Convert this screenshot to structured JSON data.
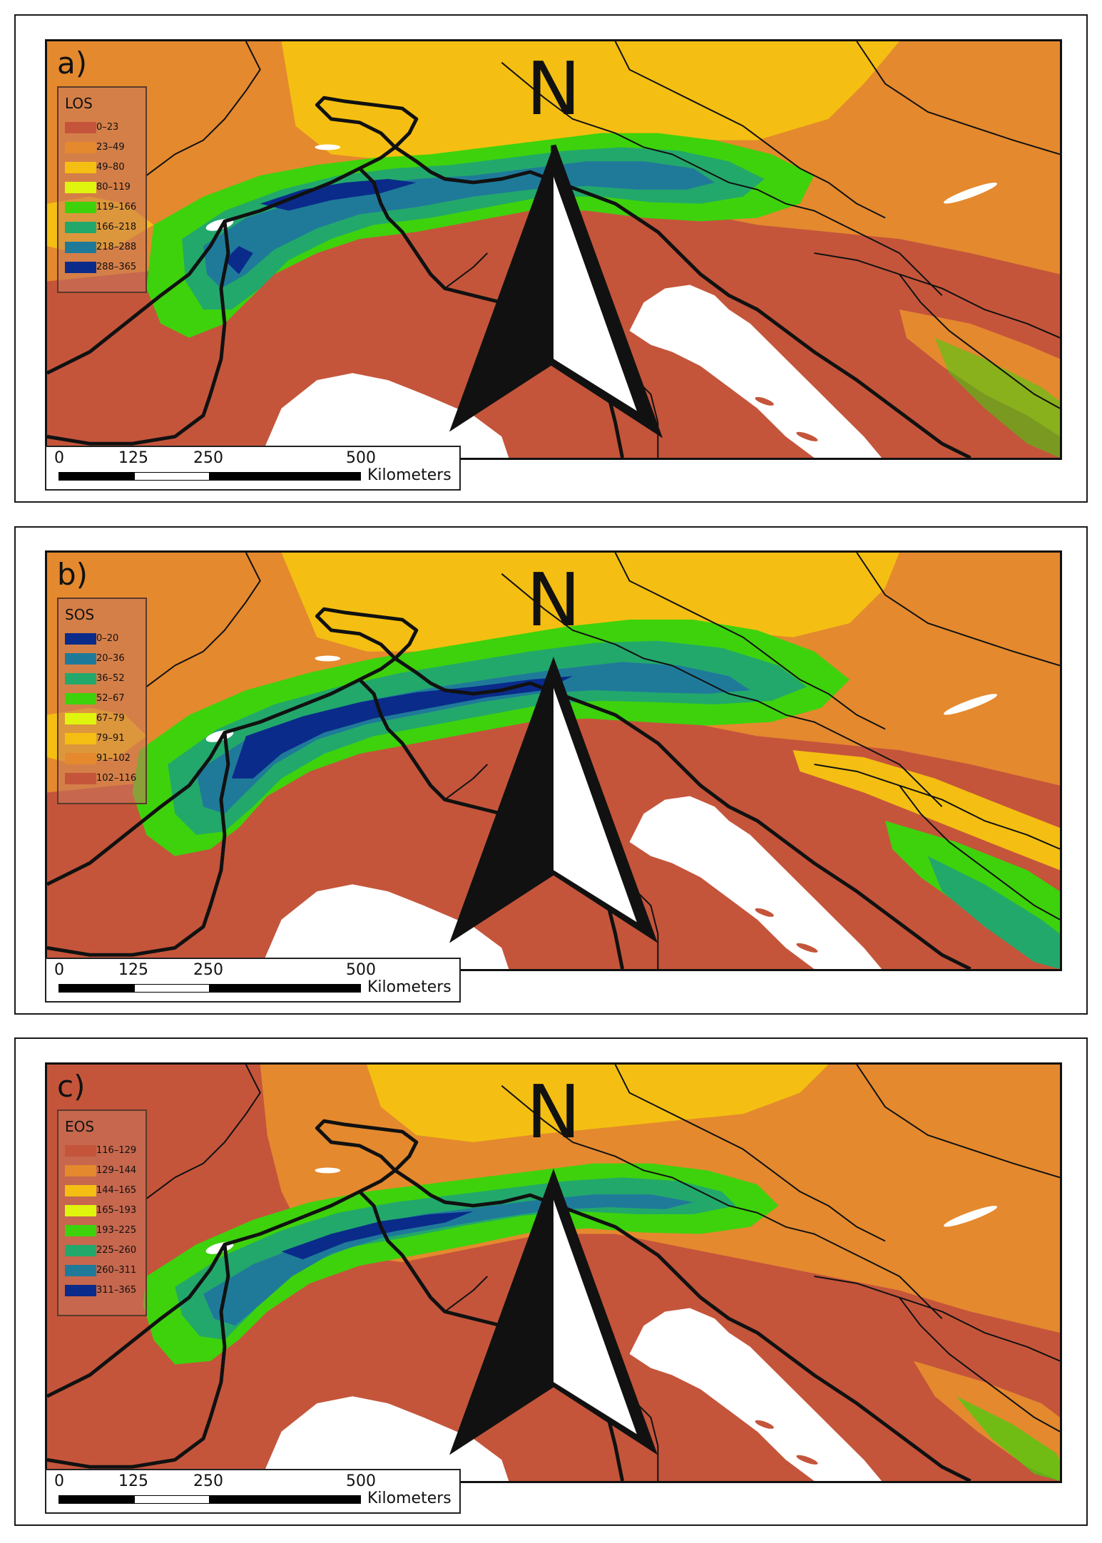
{
  "panels": [
    {
      "letter": "a)",
      "legend_title": "LOS",
      "legend": [
        {
          "label": "0–23",
          "color": "#c4553b"
        },
        {
          "label": "23–49",
          "color": "#e4892e"
        },
        {
          "label": "49–80",
          "color": "#f4bf12"
        },
        {
          "label": "80–119",
          "color": "#e0f50d"
        },
        {
          "label": "119–166",
          "color": "#3ed20c"
        },
        {
          "label": "166–218",
          "color": "#23a86b"
        },
        {
          "label": "218–288",
          "color": "#1f7a9a"
        },
        {
          "label": "288–365",
          "color": "#0a2b8a"
        }
      ]
    },
    {
      "letter": "b)",
      "legend_title": "SOS",
      "legend": [
        {
          "label": "0–20",
          "color": "#0a2b8a"
        },
        {
          "label": "20–36",
          "color": "#1f7a9a"
        },
        {
          "label": "36–52",
          "color": "#23a86b"
        },
        {
          "label": "52–67",
          "color": "#3ed20c"
        },
        {
          "label": "67–79",
          "color": "#e0f50d"
        },
        {
          "label": "79–91",
          "color": "#f4bf12"
        },
        {
          "label": "91–102",
          "color": "#e4892e"
        },
        {
          "label": "102–116",
          "color": "#c4553b"
        }
      ]
    },
    {
      "letter": "c)",
      "legend_title": "EOS",
      "legend": [
        {
          "label": "116–129",
          "color": "#c4553b"
        },
        {
          "label": "129–144",
          "color": "#e4892e"
        },
        {
          "label": "144–165",
          "color": "#f4bf12"
        },
        {
          "label": "165–193",
          "color": "#e0f50d"
        },
        {
          "label": "193–225",
          "color": "#3ed20c"
        },
        {
          "label": "225–260",
          "color": "#23a86b"
        },
        {
          "label": "260–311",
          "color": "#1f7a9a"
        },
        {
          "label": "311–365",
          "color": "#0a2b8a"
        }
      ]
    }
  ],
  "north_label": "N",
  "scale": {
    "ticks": [
      "0",
      "125",
      "250",
      "500"
    ],
    "unit": "Kilometers"
  },
  "colors": {
    "lowland": "#c4553b",
    "hill": "#e4892e",
    "upland": "#f4bf12",
    "sub_alpine": "#3ed20c",
    "alpine": "#1f7a9a",
    "high_alpine": "#0a2b8a",
    "sea": "#ffffff"
  }
}
